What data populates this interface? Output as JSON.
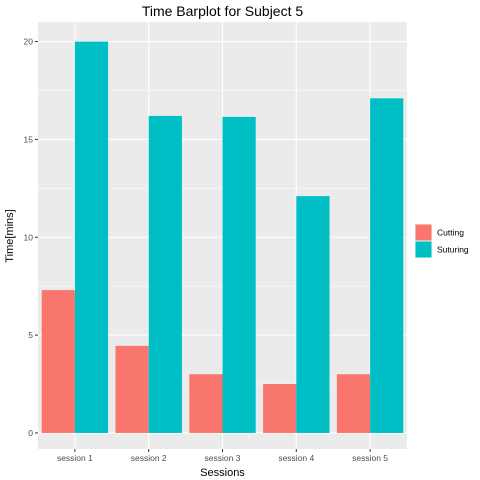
{
  "chart_data": {
    "type": "bar",
    "title": "Time Barplot for Subject  5",
    "xlabel": "Sessions",
    "ylabel": "Time[mins]",
    "categories": [
      "session 1",
      "session 2",
      "session 3",
      "session 4",
      "session 5"
    ],
    "series": [
      {
        "name": "Cutting",
        "color": "#F8766D",
        "values": [
          7.3,
          4.45,
          3.0,
          2.5,
          3.0
        ]
      },
      {
        "name": "Suturing",
        "color": "#00BFC4",
        "values": [
          20.0,
          16.2,
          16.15,
          12.1,
          17.1
        ]
      }
    ],
    "ylim": [
      -0.82,
      21.0
    ],
    "yticks": [
      0,
      5,
      10,
      15,
      20
    ],
    "ytick_labels": [
      "0",
      "5",
      "10",
      "15",
      "20"
    ],
    "grid": true,
    "legend_position": "right",
    "panel_background": "#EBEBEB"
  }
}
